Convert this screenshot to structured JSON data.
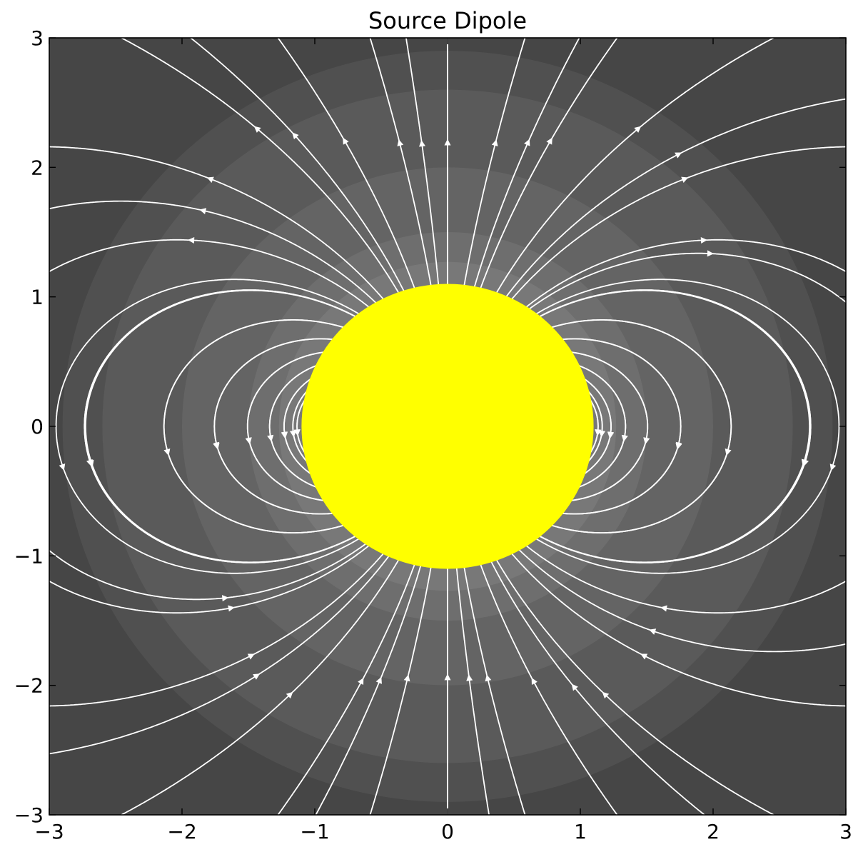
{
  "chart_data": {
    "type": "streamplot",
    "title": "Source Dipole",
    "xlabel": "",
    "ylabel": "",
    "xlim": [
      -3,
      3
    ],
    "ylim": [
      -3,
      3
    ],
    "xticks": [
      -3,
      -2,
      -1,
      0,
      1,
      2,
      3
    ],
    "yticks": [
      -3,
      -2,
      -1,
      0,
      1,
      2,
      3
    ],
    "xtick_labels": [
      "−3",
      "−2",
      "−1",
      "0",
      "1",
      "2",
      "3"
    ],
    "ytick_labels": [
      "−3",
      "−2",
      "−1",
      "0",
      "1",
      "2",
      "3"
    ],
    "source": {
      "x": 0,
      "y": 0,
      "radius": 1.1,
      "color": "#ffff00"
    },
    "background_contours": {
      "levels_radius": [
        2.9,
        2.6,
        2.0,
        1.5,
        1.27
      ],
      "colors": [
        "#464646",
        "#505050",
        "#5a5a5a",
        "#646464",
        "#6e6e6e",
        "#787878"
      ]
    },
    "field": {
      "model": "dipole",
      "moment_direction": [
        0,
        1
      ],
      "line_color": "#ffffff"
    },
    "grid": false
  }
}
